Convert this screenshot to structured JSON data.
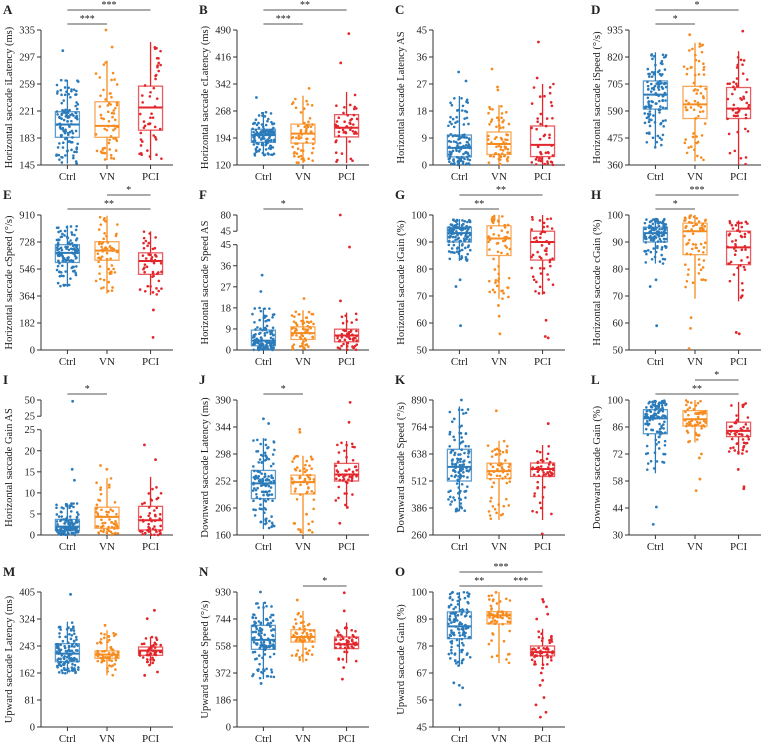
{
  "colors": {
    "Ctrl": "#2b7bba",
    "VN": "#f68b1f",
    "PCI": "#e2262b",
    "axis": "#333333",
    "sig": "#555555"
  },
  "chart_data": [
    {
      "type": "box",
      "letter": "A",
      "ylabel": "Horizontal saccade iLatency (ms)",
      "ylim": [
        145,
        335
      ],
      "ticks": [
        145,
        183,
        221,
        259,
        297,
        335
      ],
      "categories": [
        "Ctrl",
        "VN",
        "PCI"
      ],
      "groups": [
        {
          "name": "Ctrl",
          "box": [
            147,
            184,
            202,
            220,
            265
          ],
          "outliers": [
            306
          ]
        },
        {
          "name": "VN",
          "box": [
            152,
            184,
            200,
            234,
            292
          ],
          "outliers": [
            335,
            311
          ]
        },
        {
          "name": "PCI",
          "box": [
            152,
            194,
            226,
            256,
            318
          ],
          "outliers": []
        }
      ],
      "sig": [
        {
          "from": "Ctrl",
          "to": "VN",
          "label": "***",
          "level": 0
        },
        {
          "from": "Ctrl",
          "to": "PCI",
          "label": "***",
          "level": 1
        }
      ]
    },
    {
      "type": "box",
      "letter": "B",
      "ylabel": "Horizontal saccade cLatency (ms)",
      "ylim": [
        120,
        490
      ],
      "ticks": [
        120,
        194,
        268,
        342,
        416,
        490
      ],
      "categories": [
        "Ctrl",
        "VN",
        "PCI"
      ],
      "groups": [
        {
          "name": "Ctrl",
          "box": [
            145,
            182,
            202,
            218,
            265
          ],
          "outliers": [
            305
          ]
        },
        {
          "name": "VN",
          "box": [
            125,
            180,
            206,
            232,
            310
          ],
          "outliers": [
            330
          ]
        },
        {
          "name": "PCI",
          "box": [
            125,
            197,
            222,
            258,
            320
          ],
          "outliers": [
            480,
            400
          ]
        }
      ],
      "sig": [
        {
          "from": "Ctrl",
          "to": "VN",
          "label": "***",
          "level": 0
        },
        {
          "from": "Ctrl",
          "to": "PCI",
          "label": "**",
          "level": 1
        }
      ]
    },
    {
      "type": "box",
      "letter": "C",
      "ylabel": "Horizontal saccade Latency AS",
      "ylim": [
        0,
        45
      ],
      "ticks": [
        0,
        9,
        18,
        27,
        36,
        45
      ],
      "categories": [
        "Ctrl",
        "VN",
        "PCI"
      ],
      "groups": [
        {
          "name": "Ctrl",
          "box": [
            0,
            2.7,
            5.7,
            10,
            23
          ],
          "outliers": [
            31,
            28
          ]
        },
        {
          "name": "VN",
          "box": [
            0,
            3.5,
            7,
            11,
            20
          ],
          "outliers": [
            32,
            26,
            25
          ]
        },
        {
          "name": "PCI",
          "box": [
            0,
            2.8,
            6.7,
            13,
            27
          ],
          "outliers": [
            41,
            29
          ]
        }
      ],
      "sig": []
    },
    {
      "type": "box",
      "letter": "D",
      "ylabel": "Horizontal saccade iSpeed (°/s)",
      "ylim": [
        360,
        935
      ],
      "ticks": [
        360,
        475,
        590,
        705,
        820,
        935
      ],
      "categories": [
        "Ctrl",
        "VN",
        "PCI"
      ],
      "groups": [
        {
          "name": "Ctrl",
          "box": [
            435,
            598,
            660,
            718,
            840
          ],
          "outliers": []
        },
        {
          "name": "VN",
          "box": [
            375,
            558,
            618,
            695,
            880
          ],
          "outliers": [
            915
          ]
        },
        {
          "name": "PCI",
          "box": [
            360,
            558,
            600,
            690,
            845
          ],
          "outliers": [
            930
          ]
        }
      ],
      "sig": [
        {
          "from": "Ctrl",
          "to": "VN",
          "label": "*",
          "level": 0
        },
        {
          "from": "Ctrl",
          "to": "PCI",
          "label": "*",
          "level": 1
        }
      ]
    },
    {
      "type": "box",
      "letter": "E",
      "ylabel": "Horizontal saccade cSpeed (°/s)",
      "ylim": [
        0,
        910
      ],
      "ticks": [
        0,
        182,
        364,
        546,
        728,
        910
      ],
      "categories": [
        "Ctrl",
        "VN",
        "PCI"
      ],
      "groups": [
        {
          "name": "Ctrl",
          "box": [
            425,
            590,
            655,
            710,
            840
          ],
          "outliers": []
        },
        {
          "name": "VN",
          "box": [
            380,
            605,
            670,
            730,
            905
          ],
          "outliers": []
        },
        {
          "name": "PCI",
          "box": [
            370,
            510,
            600,
            655,
            800
          ],
          "outliers": [
            270,
            85
          ]
        }
      ],
      "sig": [
        {
          "from": "Ctrl",
          "to": "PCI",
          "label": "**",
          "level": 0
        },
        {
          "from": "VN",
          "to": "PCI",
          "label": "*",
          "level": 1
        }
      ]
    },
    {
      "type": "box",
      "letter": "F",
      "ylabel": "Horizontal saccade Speed AS",
      "ylim": [
        0,
        45
      ],
      "ticks": [
        0,
        9,
        18,
        27,
        36,
        45
      ],
      "axis_break": {
        "upper_ticks": [
          45,
          80
        ]
      },
      "categories": [
        "Ctrl",
        "VN",
        "PCI"
      ],
      "groups": [
        {
          "name": "Ctrl",
          "box": [
            0,
            1.8,
            4,
            8.5,
            18
          ],
          "outliers": [
            32,
            25
          ]
        },
        {
          "name": "VN",
          "box": [
            0,
            4.5,
            7.2,
            9.9,
            17
          ],
          "outliers": [
            22
          ]
        },
        {
          "name": "PCI",
          "box": [
            0,
            3.5,
            6.2,
            8.9,
            16
          ],
          "outliers": [
            80,
            44,
            21
          ]
        }
      ],
      "sig": [
        {
          "from": "Ctrl",
          "to": "VN",
          "label": "*",
          "level": 0
        }
      ]
    },
    {
      "type": "box",
      "letter": "G",
      "ylabel": "Horizontal saccade iGain (%)",
      "ylim": [
        50,
        100
      ],
      "ticks": [
        50,
        60,
        70,
        80,
        90,
        100
      ],
      "categories": [
        "Ctrl",
        "VN",
        "PCI"
      ],
      "groups": [
        {
          "name": "Ctrl",
          "box": [
            83,
            90,
            93.3,
            95.5,
            98.5
          ],
          "outliers": [
            76,
            73.5,
            59
          ]
        },
        {
          "name": "VN",
          "box": [
            69,
            85,
            91.3,
            96,
            100
          ],
          "outliers": [
            66.5,
            62.5,
            56
          ]
        },
        {
          "name": "PCI",
          "box": [
            70.5,
            83.3,
            90,
            94,
            100
          ],
          "outliers": [
            61,
            55,
            54.5
          ]
        }
      ],
      "sig": [
        {
          "from": "Ctrl",
          "to": "VN",
          "label": "**",
          "level": 0
        },
        {
          "from": "Ctrl",
          "to": "PCI",
          "label": "**",
          "level": 1
        }
      ]
    },
    {
      "type": "box",
      "letter": "H",
      "ylabel": "Horizontal saccade cGain (%)",
      "ylim": [
        50,
        100
      ],
      "ticks": [
        50,
        60,
        70,
        80,
        90,
        100
      ],
      "categories": [
        "Ctrl",
        "VN",
        "PCI"
      ],
      "groups": [
        {
          "name": "Ctrl",
          "box": [
            82,
            90,
            93.3,
            95.5,
            98.5
          ],
          "outliers": [
            76,
            73.5,
            59
          ]
        },
        {
          "name": "VN",
          "box": [
            69,
            85.3,
            94,
            97,
            100
          ],
          "outliers": [
            62,
            58,
            50.5
          ]
        },
        {
          "name": "PCI",
          "box": [
            68,
            81.6,
            88,
            94,
            98
          ],
          "outliers": [
            56.5,
            56
          ]
        }
      ],
      "sig": [
        {
          "from": "Ctrl",
          "to": "VN",
          "label": "*",
          "level": 0
        },
        {
          "from": "Ctrl",
          "to": "PCI",
          "label": "***",
          "level": 1
        }
      ]
    },
    {
      "type": "box",
      "letter": "I",
      "ylabel": "Horizontal saccade Gain AS",
      "ylim": [
        0,
        25
      ],
      "ticks": [
        0,
        5,
        10,
        15,
        20,
        25
      ],
      "axis_break": {
        "upper_ticks": [
          25,
          50
        ]
      },
      "categories": [
        "Ctrl",
        "VN",
        "PCI"
      ],
      "groups": [
        {
          "name": "Ctrl",
          "box": [
            0,
            1,
            2,
            3.7,
            7.5
          ],
          "outliers": [
            48,
            15.6,
            13
          ]
        },
        {
          "name": "VN",
          "box": [
            0,
            1.6,
            4.3,
            6.6,
            13.5
          ],
          "outliers": [
            16.5,
            15.6
          ]
        },
        {
          "name": "PCI",
          "box": [
            0,
            1.2,
            3.5,
            6.8,
            13.8
          ],
          "outliers": [
            21.4,
            17.9
          ]
        }
      ],
      "sig": [
        {
          "from": "Ctrl",
          "to": "VN",
          "label": "*",
          "level": 0
        }
      ]
    },
    {
      "type": "box",
      "letter": "J",
      "ylabel": "Downward saccade Latency (ms)",
      "ylim": [
        160,
        390
      ],
      "ticks": [
        160,
        206,
        252,
        298,
        344,
        390
      ],
      "categories": [
        "Ctrl",
        "VN",
        "PCI"
      ],
      "groups": [
        {
          "name": "Ctrl",
          "box": [
            170,
            222,
            248,
            270,
            325
          ],
          "outliers": [
            358,
            350
          ]
        },
        {
          "name": "VN",
          "box": [
            160,
            230,
            250,
            262,
            295
          ],
          "outliers": [
            340,
            335
          ]
        },
        {
          "name": "PCI",
          "box": [
            205,
            252,
            263,
            282,
            320
          ],
          "outliers": [
            386,
            352,
            180
          ]
        }
      ],
      "sig": [
        {
          "from": "Ctrl",
          "to": "VN",
          "label": "*",
          "level": 0
        }
      ]
    },
    {
      "type": "box",
      "letter": "K",
      "ylabel": "Downward saccade Speed (°/s)",
      "ylim": [
        260,
        890
      ],
      "ticks": [
        260,
        386,
        512,
        638,
        764,
        890
      ],
      "categories": [
        "Ctrl",
        "VN",
        "PCI"
      ],
      "groups": [
        {
          "name": "Ctrl",
          "box": [
            370,
            512,
            578,
            660,
            860
          ],
          "outliers": [
            890
          ]
        },
        {
          "name": "VN",
          "box": [
            330,
            523,
            558,
            595,
            700
          ],
          "outliers": [
            840
          ]
        },
        {
          "name": "PCI",
          "box": [
            330,
            533,
            568,
            596,
            680
          ],
          "outliers": [
            780,
            265
          ]
        }
      ],
      "sig": []
    },
    {
      "type": "box",
      "letter": "L",
      "ylabel": "Downward saccade Gain (%)",
      "ylim": [
        30,
        100
      ],
      "ticks": [
        30,
        44,
        58,
        72,
        86,
        100
      ],
      "categories": [
        "Ctrl",
        "VN",
        "PCI"
      ],
      "groups": [
        {
          "name": "Ctrl",
          "box": [
            62,
            82.5,
            90.5,
            95,
            100
          ],
          "outliers": [
            44.5,
            35.5
          ]
        },
        {
          "name": "VN",
          "box": [
            78,
            86.5,
            90,
            94.5,
            100
          ],
          "outliers": [
            72,
            70,
            59,
            53
          ]
        },
        {
          "name": "PCI",
          "box": [
            72,
            81,
            84,
            88.5,
            99
          ],
          "outliers": [
            64,
            55,
            54
          ]
        }
      ],
      "sig": [
        {
          "from": "Ctrl",
          "to": "PCI",
          "label": "**",
          "level": 0
        },
        {
          "from": "VN",
          "to": "PCI",
          "label": "*",
          "level": 1
        }
      ]
    },
    {
      "type": "box",
      "letter": "M",
      "ylabel": "Upward saccade Latency (ms)",
      "ylim": [
        0,
        405
      ],
      "ticks": [
        0,
        81,
        162,
        243,
        324,
        405
      ],
      "categories": [
        "Ctrl",
        "VN",
        "PCI"
      ],
      "groups": [
        {
          "name": "Ctrl",
          "box": [
            160,
            196,
            220,
            250,
            316
          ],
          "outliers": [
            398
          ]
        },
        {
          "name": "VN",
          "box": [
            155,
            206,
            217,
            228,
            290
          ],
          "outliers": [
            305
          ]
        },
        {
          "name": "PCI",
          "box": [
            185,
            215,
            229,
            240,
            270
          ],
          "outliers": [
            350,
            325,
            165,
            155
          ]
        }
      ],
      "sig": []
    },
    {
      "type": "box",
      "letter": "N",
      "ylabel": "Upward saccade Speed (°/s)",
      "ylim": [
        0,
        930
      ],
      "ticks": [
        0,
        186,
        372,
        558,
        744,
        930
      ],
      "categories": [
        "Ctrl",
        "VN",
        "PCI"
      ],
      "groups": [
        {
          "name": "Ctrl",
          "box": [
            330,
            535,
            600,
            700,
            860
          ],
          "outliers": [
            930,
            300
          ]
        },
        {
          "name": "VN",
          "box": [
            445,
            585,
            620,
            670,
            800
          ],
          "outliers": [
            875
          ]
        },
        {
          "name": "PCI",
          "box": [
            440,
            540,
            570,
            620,
            720
          ],
          "outliers": [
            925,
            800,
            410,
            330
          ]
        }
      ],
      "sig": [
        {
          "from": "VN",
          "to": "PCI",
          "label": "*",
          "level": 0
        }
      ]
    },
    {
      "type": "box",
      "letter": "O",
      "ylabel": "Upward saccade Gain (%)",
      "ylim": [
        45,
        100
      ],
      "ticks": [
        45,
        56,
        67,
        78,
        89,
        100
      ],
      "categories": [
        "Ctrl",
        "VN",
        "PCI"
      ],
      "groups": [
        {
          "name": "Ctrl",
          "box": [
            70,
            81,
            86,
            91.9,
            100
          ],
          "outliers": [
            63,
            62,
            61,
            54
          ]
        },
        {
          "name": "VN",
          "box": [
            71,
            87,
            90.5,
            92,
            100
          ],
          "outliers": []
        },
        {
          "name": "PCI",
          "box": [
            70,
            74,
            75.5,
            78,
            85
          ],
          "outliers": [
            97,
            96,
            94,
            91,
            89,
            69,
            67,
            64,
            62,
            57,
            54,
            51,
            49
          ]
        }
      ],
      "sig": [
        {
          "from": "Ctrl",
          "to": "VN",
          "label": "**",
          "level": 0
        },
        {
          "from": "VN",
          "to": "PCI",
          "label": "***",
          "level": 0
        },
        {
          "from": "Ctrl",
          "to": "PCI",
          "label": "***",
          "level": 1
        }
      ]
    }
  ]
}
